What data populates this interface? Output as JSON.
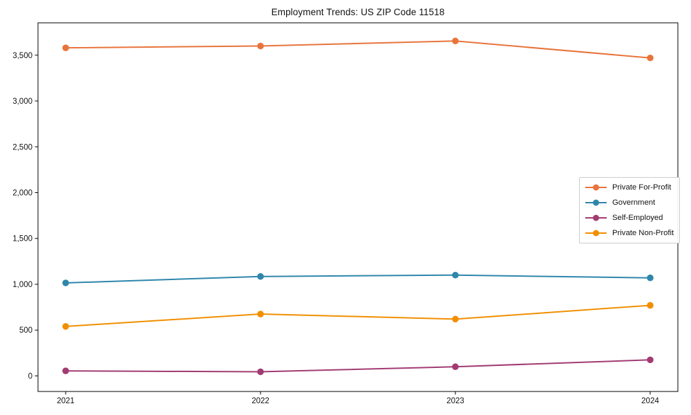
{
  "chart_data": {
    "type": "line",
    "title": "Employment Trends: US ZIP Code 11518",
    "x": [
      2021,
      2022,
      2023,
      2024
    ],
    "x_tick_labels": [
      "2021",
      "2022",
      "2023",
      "2024"
    ],
    "series": [
      {
        "name": "Private For-Profit",
        "color": "#e8743b",
        "values": [
          3580,
          3600,
          3655,
          3470
        ]
      },
      {
        "name": "Government",
        "color": "#2e86ab",
        "values": [
          1015,
          1085,
          1100,
          1070
        ]
      },
      {
        "name": "Self-Employed",
        "color": "#a23b72",
        "values": [
          55,
          45,
          100,
          175
        ]
      },
      {
        "name": "Private Non-Profit",
        "color": "#f18f01",
        "values": [
          540,
          675,
          620,
          770
        ]
      }
    ],
    "xlabel": "",
    "ylabel": "",
    "y_ticks": [
      0,
      500,
      1000,
      1500,
      2000,
      2500,
      3000,
      3500
    ],
    "y_tick_labels": [
      "0",
      "500",
      "1,000",
      "1,500",
      "2,000",
      "2,500",
      "3,000",
      "3,500"
    ],
    "ylim": [
      -170,
      3853
    ],
    "xlim": [
      2020.858,
      2024.142
    ],
    "grid": false,
    "frame": "box",
    "legend_position": "center right",
    "marker": "circle",
    "axis_color": "#000000",
    "tick_label_color": "#111111"
  }
}
